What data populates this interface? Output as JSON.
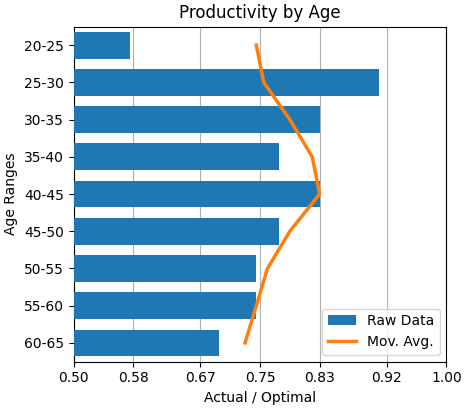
{
  "chart_data": {
    "type": "bar",
    "orientation": "horizontal",
    "title": "Productivity by Age",
    "x_label": "Actual / Optimal",
    "y_label": "Age Ranges",
    "categories": [
      "20-25",
      "25-30",
      "30-35",
      "35-40",
      "40-45",
      "45-50",
      "50-55",
      "55-60",
      "60-65"
    ],
    "series": [
      {
        "name": "Raw Data",
        "type": "bar",
        "values": [
          0.575,
          0.91,
          0.83,
          0.775,
          0.83,
          0.775,
          0.745,
          0.745,
          0.695
        ]
      },
      {
        "name": "Mov. Avg.",
        "type": "line",
        "values": [
          0.745,
          0.755,
          0.79,
          0.82,
          0.83,
          0.79,
          0.76,
          0.745,
          0.73
        ]
      }
    ],
    "xlim": [
      0.5,
      1.0
    ],
    "xticks": [
      {
        "value": 0.5,
        "label": "0.50"
      },
      0.58,
      0.67,
      0.75,
      0.83,
      0.92,
      {
        "value": 1.0,
        "label": "1.00"
      }
    ],
    "grid": true,
    "legend": "lower right"
  }
}
